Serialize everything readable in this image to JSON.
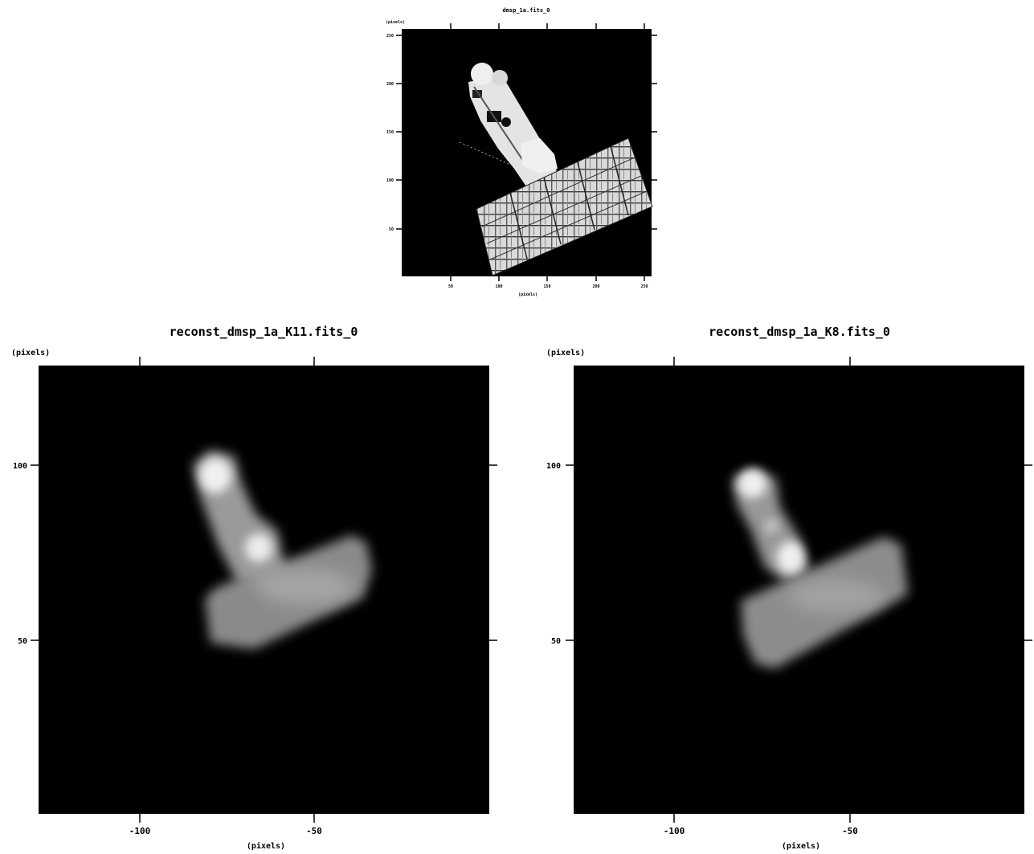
{
  "panels": {
    "top": {
      "title": "dmsp_1a.fits_0",
      "unit_y": "(pixels)",
      "unit_x": "(pixels)",
      "y_ticks": [
        "250",
        "200",
        "150",
        "100",
        "50"
      ],
      "x_ticks": [
        "50",
        "100",
        "150",
        "200",
        "250"
      ]
    },
    "left": {
      "title": "reconst_dmsp_1a_K11.fits_0",
      "unit_y": "(pixels)",
      "unit_x": "(pixels)",
      "y_ticks": [
        "100",
        "50"
      ],
      "x_ticks": [
        "-100",
        "-50"
      ]
    },
    "right": {
      "title": "reconst_dmsp_1a_K8.fits_0",
      "unit_y": "(pixels)",
      "unit_x": "(pixels)",
      "y_ticks": [
        "100",
        "50"
      ],
      "x_ticks": [
        "-100",
        "-50"
      ]
    }
  },
  "colors": {
    "image_background": "#000000",
    "page_background": "#ffffff",
    "bright": "#f2f2f2",
    "mid": "#a8a8a8"
  }
}
